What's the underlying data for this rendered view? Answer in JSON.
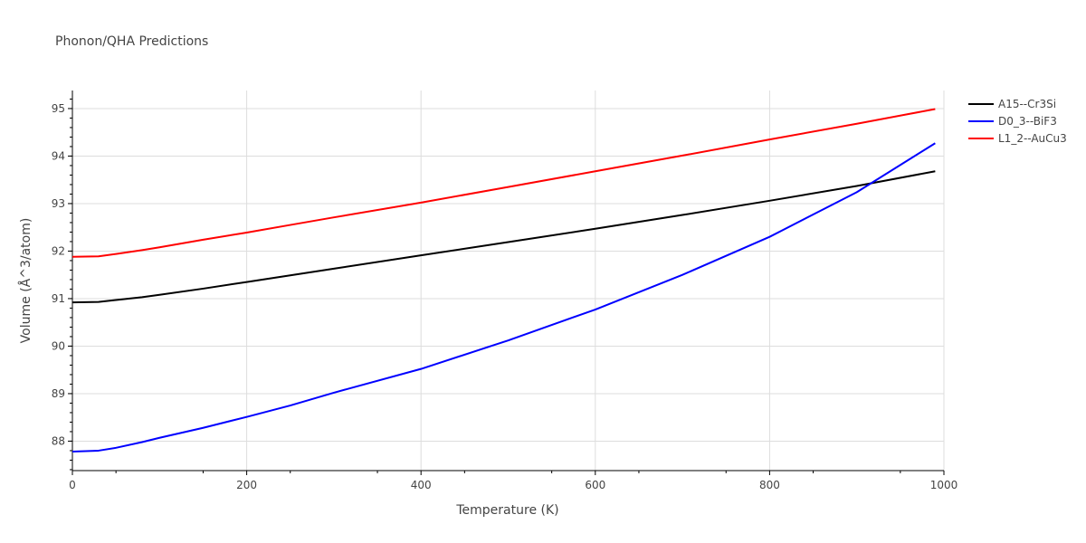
{
  "chart_data": {
    "type": "line",
    "title": "Phonon/QHA Predictions",
    "xlabel": "Temperature (K)",
    "ylabel": "Volume (Å^3/atom)",
    "xlim": [
      0,
      1000
    ],
    "ylim": [
      87.38,
      95.38
    ],
    "xticks": [
      0,
      200,
      400,
      600,
      800,
      1000
    ],
    "yticks": [
      88,
      89,
      90,
      91,
      92,
      93,
      94,
      95
    ],
    "grid": true,
    "legend_position": "top-right",
    "series": [
      {
        "name": "A15--Cr3Si",
        "color": "#000000",
        "x": [
          0,
          30,
          50,
          80,
          100,
          150,
          200,
          250,
          300,
          400,
          500,
          600,
          700,
          800,
          900,
          990
        ],
        "y": [
          90.92,
          90.93,
          90.97,
          91.03,
          91.08,
          91.21,
          91.35,
          91.49,
          91.63,
          91.91,
          92.19,
          92.47,
          92.76,
          93.06,
          93.37,
          93.68
        ]
      },
      {
        "name": "D0_3--BiF3",
        "color": "#0000ff",
        "x": [
          0,
          30,
          50,
          80,
          100,
          150,
          200,
          250,
          300,
          400,
          500,
          600,
          700,
          800,
          900,
          990
        ],
        "y": [
          87.78,
          87.8,
          87.86,
          87.98,
          88.07,
          88.28,
          88.51,
          88.75,
          89.02,
          89.52,
          90.12,
          90.77,
          91.5,
          92.3,
          93.24,
          94.27
        ]
      },
      {
        "name": "L1_2--AuCu3",
        "color": "#ff0000",
        "x": [
          0,
          30,
          50,
          80,
          100,
          150,
          200,
          250,
          300,
          400,
          500,
          600,
          700,
          800,
          900,
          990
        ],
        "y": [
          91.88,
          91.89,
          91.94,
          92.02,
          92.08,
          92.24,
          92.39,
          92.55,
          92.71,
          93.02,
          93.35,
          93.68,
          94.01,
          94.35,
          94.68,
          94.99
        ]
      }
    ]
  }
}
